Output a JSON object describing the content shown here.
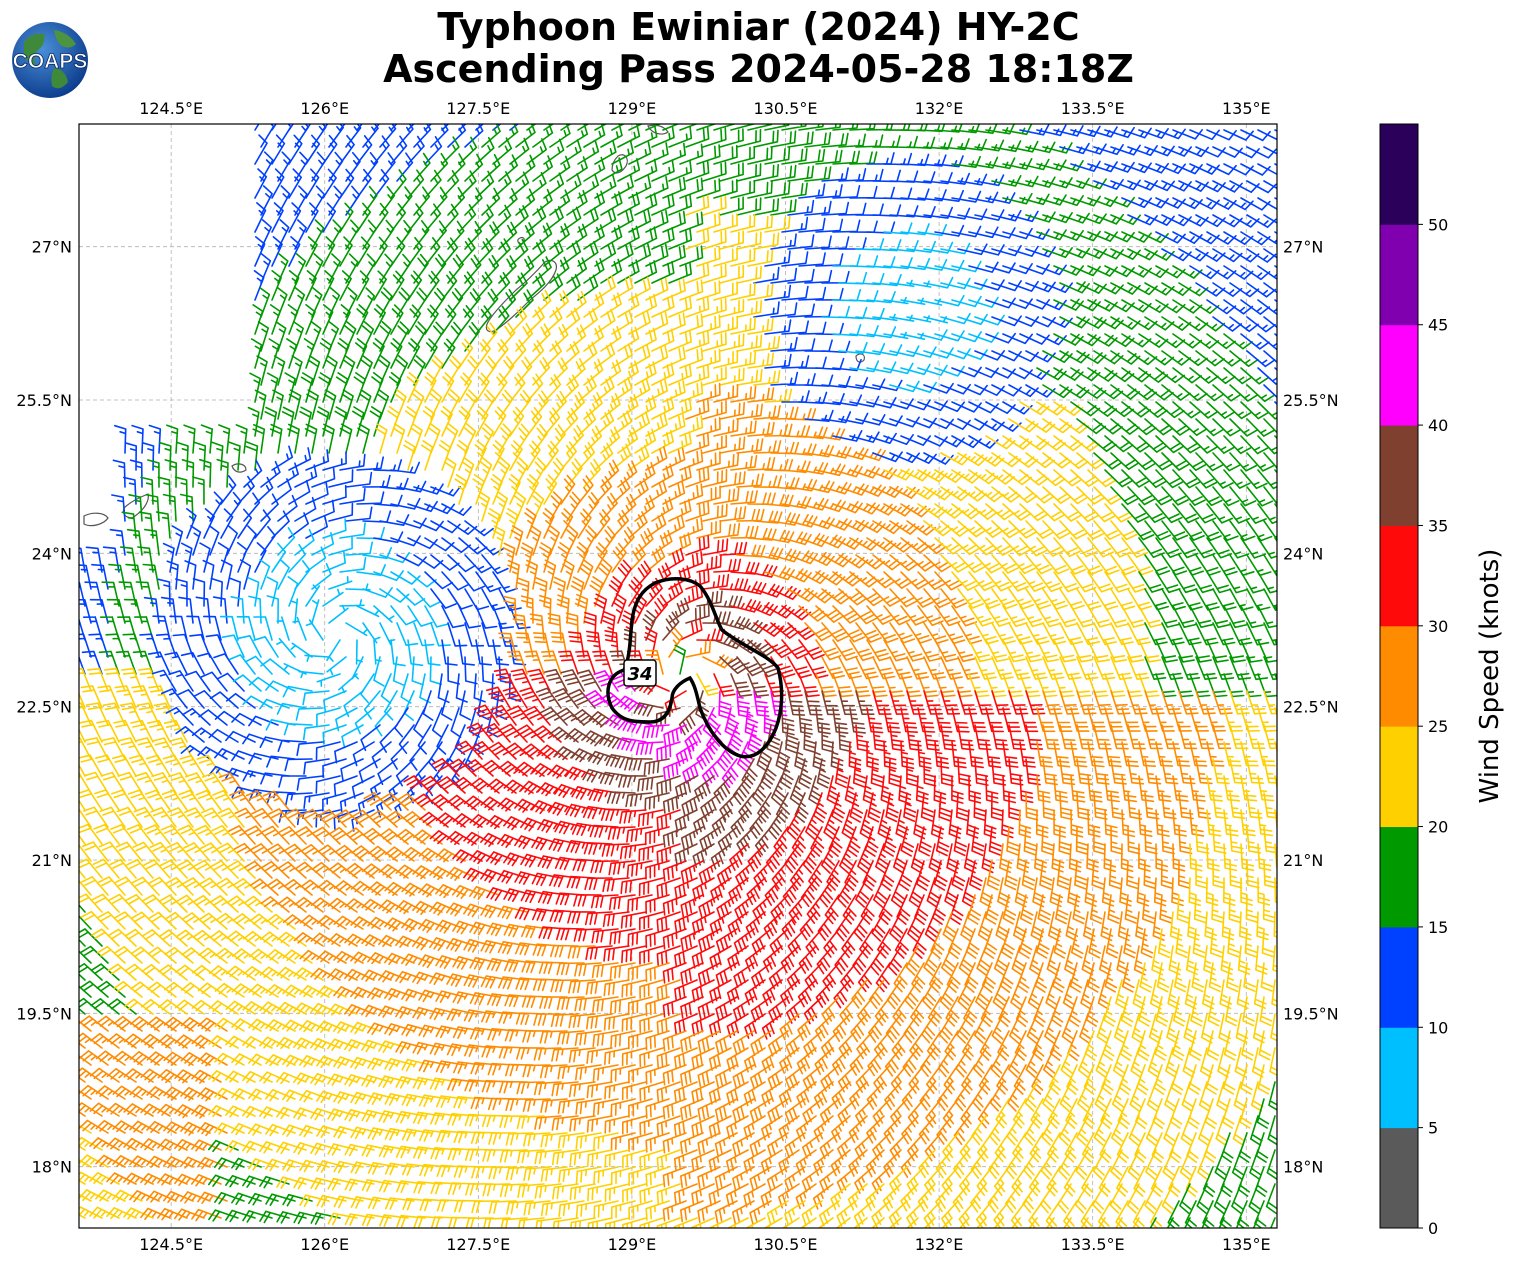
{
  "title": {
    "line1": "Typhoon Ewiniar (2024) HY-2C",
    "line2": "Ascending Pass 2024-05-28 18:18Z"
  },
  "logo": {
    "text": "COAPS",
    "icon": "globe-logo-icon"
  },
  "map": {
    "lon_range": [
      123.6,
      135.3
    ],
    "lat_range": [
      17.4,
      28.2
    ],
    "lon_ticks": [
      "124.5°E",
      "126°E",
      "127.5°E",
      "129°E",
      "130.5°E",
      "132°E",
      "133.5°E",
      "135°E"
    ],
    "lat_ticks": [
      "18°N",
      "19.5°N",
      "21°N",
      "22.5°N",
      "24°N",
      "25.5°N",
      "27°N"
    ],
    "storm_center": {
      "lon": 129.5,
      "lat": 22.8
    },
    "contour_label": "34",
    "contour_level_knots": 34
  },
  "colorbar": {
    "label": "Wind Speed (knots)",
    "tick_labels": [
      "0",
      "5",
      "10",
      "15",
      "20",
      "25",
      "30",
      "35",
      "40",
      "45",
      "50"
    ],
    "colors": [
      "#5a5a5a",
      "#00bfff",
      "#0040ff",
      "#009900",
      "#ffd000",
      "#ff8c00",
      "#ff0a0a",
      "#804030",
      "#ff00ff",
      "#8000b0",
      "#2a005a"
    ]
  }
}
